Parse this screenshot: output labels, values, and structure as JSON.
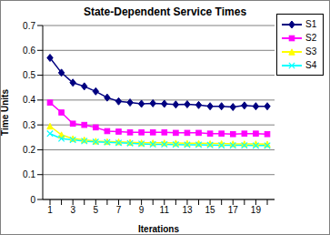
{
  "chart_data": {
    "type": "line",
    "title": "State-Dependent Service Times",
    "x_label": "Iterations",
    "y_label": "Time Units",
    "categories": [
      "1",
      null,
      "3",
      null,
      "5",
      null,
      "7",
      null,
      "9",
      null,
      "11",
      null,
      "13",
      null,
      "15",
      null,
      "17",
      null,
      "19",
      null
    ],
    "series": [
      {
        "name": "S1",
        "color": "#000080",
        "marker": "diamond",
        "values": [
          0.57,
          0.51,
          0.47,
          0.455,
          0.435,
          0.41,
          0.395,
          0.39,
          0.385,
          0.387,
          0.385,
          0.382,
          0.383,
          0.38,
          0.375,
          0.375,
          0.372,
          0.378,
          0.375,
          0.375
        ]
      },
      {
        "name": "S2",
        "color": "#ff00ff",
        "marker": "square",
        "values": [
          0.39,
          0.35,
          0.305,
          0.3,
          0.29,
          0.275,
          0.273,
          0.27,
          0.27,
          0.27,
          0.27,
          0.268,
          0.268,
          0.268,
          0.265,
          0.265,
          0.263,
          0.265,
          0.265,
          0.263
        ]
      },
      {
        "name": "S3",
        "color": "#ffff00",
        "marker": "triangle",
        "values": [
          0.295,
          0.26,
          0.245,
          0.24,
          0.235,
          0.233,
          0.232,
          0.23,
          0.228,
          0.228,
          0.228,
          0.227,
          0.226,
          0.226,
          0.225,
          0.225,
          0.224,
          0.224,
          0.224,
          0.223
        ]
      },
      {
        "name": "S4",
        "color": "#00ffff",
        "marker": "x",
        "values": [
          0.265,
          0.245,
          0.24,
          0.235,
          0.232,
          0.23,
          0.228,
          0.226,
          0.224,
          0.222,
          0.222,
          0.221,
          0.22,
          0.22,
          0.219,
          0.218,
          0.218,
          0.218,
          0.217,
          0.217
        ]
      }
    ],
    "ylim": [
      0,
      0.7
    ],
    "yticks": [
      0,
      0.1,
      0.2,
      0.3,
      0.4,
      0.5,
      0.6,
      0.7
    ],
    "grid": true,
    "legend": "top-right"
  }
}
